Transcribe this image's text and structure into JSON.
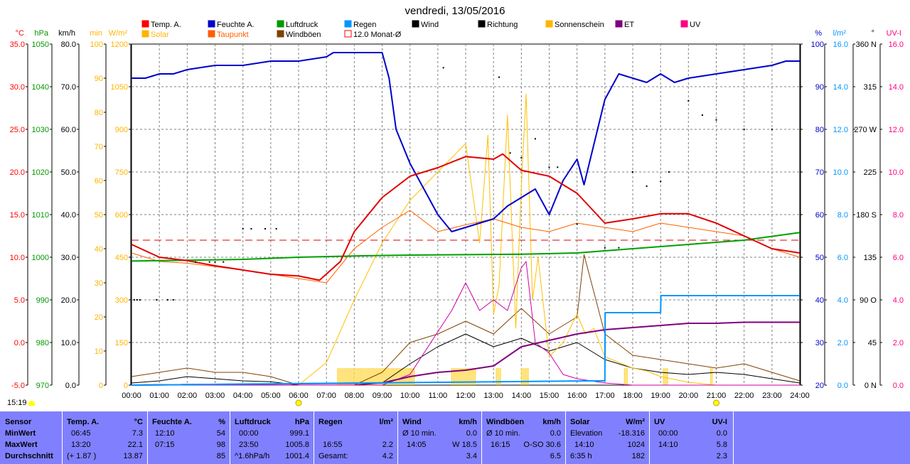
{
  "chart_data": {
    "type": "line",
    "title": "vendredi, 13/05/2016",
    "x_ticks": [
      "00:00",
      "01:00",
      "02:00",
      "03:00",
      "04:00",
      "05:00",
      "06:00",
      "07:00",
      "08:00",
      "09:00",
      "10:00",
      "11:00",
      "12:00",
      "13:00",
      "14:00",
      "15:00",
      "16:00",
      "17:00",
      "18:00",
      "19:00",
      "20:00",
      "21:00",
      "22:00",
      "23:00",
      "24:00"
    ],
    "left_axes": [
      {
        "unit": "°C",
        "color": "#ff0000",
        "ticks": [
          "35.0",
          "30.0",
          "25.0",
          "20.0",
          "15.0",
          "10.0",
          "5.0",
          "0.0",
          "-5.0"
        ]
      },
      {
        "unit": "hPa",
        "color": "#009900",
        "ticks": [
          "1050",
          "1040",
          "1030",
          "1020",
          "1010",
          "1000",
          "990",
          "980",
          "970"
        ]
      },
      {
        "unit": "km/h",
        "color": "#000000",
        "ticks": [
          "80.0",
          "70.0",
          "60.0",
          "50.0",
          "40.0",
          "30.0",
          "20.0",
          "10.0",
          "0.0"
        ]
      },
      {
        "unit": "min",
        "color": "#ffb400",
        "ticks": [
          "100",
          "90",
          "80",
          "70",
          "60",
          "50",
          "40",
          "30",
          "20",
          "10",
          "0"
        ]
      },
      {
        "unit": "W/m²",
        "color": "#ffb400",
        "ticks": [
          "1200",
          "1050",
          "900",
          "750",
          "600",
          "450",
          "300",
          "150",
          "0"
        ]
      }
    ],
    "right_axes": [
      {
        "unit": "%",
        "color": "#0000cc",
        "ticks": [
          "100",
          "90",
          "80",
          "70",
          "60",
          "50",
          "40",
          "30",
          "20"
        ]
      },
      {
        "unit": "l/m²",
        "color": "#0096ff",
        "ticks": [
          "16.0",
          "14.0",
          "12.0",
          "10.0",
          "8.0",
          "6.0",
          "4.0",
          "2.0",
          "0.0"
        ]
      },
      {
        "unit": "°",
        "color": "#000000",
        "ticks": [
          "360 N",
          "315",
          "270 W",
          "225",
          "180 S",
          "135",
          "90 O",
          "45",
          "0 N"
        ]
      },
      {
        "unit": "UV-I",
        "color": "#ff0080",
        "ticks": [
          "16.0",
          "14.0",
          "12.0",
          "10.0",
          "8.0",
          "6.0",
          "4.0",
          "2.0",
          "0.0"
        ]
      }
    ],
    "legend": [
      {
        "label": "Temp. A.",
        "color": "#ff0000"
      },
      {
        "label": "Feuchte A.",
        "color": "#0000cc"
      },
      {
        "label": "Luftdruck",
        "color": "#009900"
      },
      {
        "label": "Regen",
        "color": "#0096ff"
      },
      {
        "label": "Wind",
        "color": "#000000"
      },
      {
        "label": "Richtung",
        "color": "#000000"
      },
      {
        "label": "Sonnenschein",
        "color": "#ffb400"
      },
      {
        "label": "ET",
        "color": "#800080"
      },
      {
        "label": "UV",
        "color": "#ff0080"
      },
      {
        "label": "Solar",
        "color": "#ffb400"
      },
      {
        "label": "Taupunkt",
        "color": "#ff6000"
      },
      {
        "label": "Windböen",
        "color": "#804000"
      },
      {
        "label": "12.0 Monat-Ø",
        "color": "#ff0000"
      }
    ],
    "temperature_c": {
      "x": [
        0,
        1,
        2,
        3,
        4,
        5,
        6,
        6.75,
        7.5,
        8,
        9,
        10,
        11,
        12,
        13,
        13.33,
        14,
        15,
        16,
        17,
        18,
        19,
        20,
        21,
        22,
        23,
        24
      ],
      "y": [
        11.5,
        10,
        9.6,
        9,
        8.5,
        8,
        7.8,
        7.3,
        9.5,
        13,
        17,
        19.5,
        20.5,
        21.8,
        21.5,
        22.1,
        20.2,
        19.5,
        17.5,
        14,
        14.5,
        15.1,
        15.1,
        14,
        12.5,
        11,
        10.5
      ]
    },
    "humidity_pct": {
      "x": [
        0,
        0.5,
        1,
        1.5,
        2,
        3,
        4,
        5,
        6,
        7,
        7.25,
        8,
        9,
        9.25,
        9.5,
        10,
        10.5,
        11,
        11.5,
        12,
        12.5,
        13,
        13.5,
        14,
        14.5,
        15,
        15.5,
        16,
        16.25,
        17,
        17.5,
        18,
        18.5,
        19,
        19.5,
        20,
        21,
        22,
        23,
        23.5,
        24
      ],
      "y": [
        92,
        92,
        93,
        93,
        94,
        95,
        95,
        96,
        96,
        97,
        98,
        98,
        98,
        92,
        80,
        72,
        66,
        60,
        56,
        57,
        58,
        59,
        62,
        64,
        66,
        60,
        68,
        73,
        67,
        87,
        93,
        92,
        91,
        93,
        91,
        92,
        93,
        94,
        95,
        96,
        96
      ]
    },
    "dewpoint_c": {
      "x": [
        0,
        1,
        2,
        3,
        4,
        5,
        6,
        7,
        8,
        9,
        10,
        11,
        12,
        13,
        14,
        15,
        16,
        17,
        18,
        19,
        20,
        21,
        22,
        23,
        24
      ],
      "y": [
        10.5,
        9.5,
        9.3,
        8.9,
        8.5,
        8,
        7.5,
        7,
        11,
        13.5,
        15.5,
        13,
        13.8,
        14.5,
        13.5,
        13,
        14,
        13.5,
        13,
        14,
        13.5,
        13,
        12.5,
        11,
        10
      ]
    },
    "pressure_hpa": {
      "x": [
        0,
        2,
        4,
        6,
        8,
        10,
        12,
        14,
        16,
        18,
        20,
        22,
        24
      ],
      "y": [
        999.1,
        999.3,
        999.5,
        1000,
        1000.3,
        1000.5,
        1000.6,
        1000.7,
        1001,
        1002,
        1003,
        1004,
        1005.8
      ]
    },
    "monthly_avg_temp_c": 12.0,
    "rain_l_m2": {
      "x": [
        0,
        16.55,
        17,
        17.01,
        19,
        19.01,
        24
      ],
      "y": [
        0,
        0.2,
        0.2,
        3.4,
        3.4,
        4.2,
        4.2
      ]
    },
    "et": {
      "x": [
        0,
        9,
        10,
        11,
        12,
        13,
        14,
        15,
        16,
        17,
        18,
        19,
        20,
        21,
        22,
        23,
        24
      ],
      "y": [
        0,
        0.1,
        0.4,
        0.6,
        0.7,
        0.9,
        1.8,
        2.1,
        2.4,
        2.6,
        2.7,
        2.8,
        2.9,
        2.9,
        2.95,
        2.95,
        2.95
      ]
    },
    "uv_index": {
      "x": [
        0,
        9,
        10,
        11,
        11.5,
        12,
        12.5,
        13,
        13.5,
        14,
        14.17,
        14.5,
        15,
        15.5,
        16,
        17,
        18,
        19,
        24
      ],
      "y": [
        0,
        0,
        0.5,
        2.5,
        3.5,
        4.8,
        3.5,
        4,
        3.5,
        5.5,
        5.8,
        2,
        1.5,
        0.5,
        0.3,
        0.1,
        0,
        0,
        0
      ]
    },
    "solar_w_m2": {
      "x": [
        0,
        6,
        7,
        8,
        9,
        10,
        11,
        12,
        12.5,
        12.8,
        13,
        13.2,
        13.5,
        13.8,
        14,
        14.17,
        14.4,
        14.6,
        15,
        15.5,
        16,
        16.3,
        16.6,
        17,
        17.5,
        18,
        18.5,
        19,
        19.5,
        20,
        21,
        22,
        24
      ],
      "y": [
        0,
        0,
        80,
        300,
        500,
        650,
        750,
        850,
        500,
        880,
        250,
        350,
        950,
        200,
        700,
        1024,
        300,
        450,
        100,
        150,
        250,
        180,
        200,
        100,
        80,
        60,
        50,
        30,
        20,
        10,
        0,
        0,
        0
      ]
    },
    "sunshine_intervals_h": [
      [
        7.4,
        8.8
      ],
      [
        8.8,
        10.2
      ],
      [
        11.5,
        12.4
      ],
      [
        13.1,
        13.3
      ],
      [
        14.0,
        14.3
      ],
      [
        17.7,
        17.8
      ],
      [
        19.1,
        19.3
      ],
      [
        20.8,
        20.9
      ]
    ],
    "direction_deg_samples": {
      "x": [
        0.1,
        0.2,
        0.3,
        0.9,
        1.3,
        1.5,
        2.3,
        2.8,
        3,
        3.3,
        4,
        4.3,
        4.8,
        5.2,
        11.2,
        13.2,
        13.6,
        14,
        14.5,
        15,
        15.3,
        16,
        17,
        17.5,
        18,
        18.5,
        19,
        19.3,
        20,
        20.5,
        21,
        22,
        23
      ],
      "y": [
        90,
        90,
        90,
        90,
        90,
        90,
        130,
        130,
        130,
        130,
        165,
        165,
        165,
        165,
        335,
        325,
        245,
        240,
        260,
        230,
        230,
        170,
        145,
        145,
        225,
        210,
        215,
        225,
        300,
        285,
        280,
        270,
        270
      ]
    },
    "wind_kmh": {
      "x": [
        0,
        1,
        2,
        3,
        4,
        5,
        6,
        7,
        8,
        9,
        10,
        11,
        12,
        13,
        14,
        15,
        16,
        17,
        18,
        19,
        20,
        21,
        22,
        23,
        24
      ],
      "y": [
        0.5,
        1,
        2,
        1.5,
        1,
        0.8,
        0,
        0,
        0,
        0.5,
        5,
        9,
        12,
        9,
        11,
        8,
        10,
        6,
        4,
        3,
        2.5,
        3,
        2.5,
        1.5,
        0.5
      ]
    },
    "gusts_kmh": {
      "x": [
        0,
        1,
        2,
        3,
        4,
        5,
        6,
        7,
        8,
        9,
        10,
        11,
        12,
        13,
        14,
        15,
        16,
        16.25,
        17,
        18,
        19,
        20,
        21,
        22,
        23,
        24
      ],
      "y": [
        2,
        3,
        4,
        3,
        3,
        2,
        0,
        0,
        0,
        3,
        10,
        12,
        15,
        12,
        18,
        12,
        16,
        30.6,
        12,
        7,
        6,
        5,
        4,
        5,
        3,
        1
      ]
    }
  },
  "header": {
    "title": "vendredi, 13/05/2016",
    "legend_row1": [
      "Temp. A.",
      "Feuchte A.",
      "Luftdruck",
      "Regen",
      "Wind",
      "Richtung",
      "Sonnenschein",
      "ET",
      "UV"
    ],
    "legend_row2": [
      "Solar",
      "Taupunkt",
      "Windböen",
      "12.0 Monat-Ø"
    ]
  },
  "timestamp": "15:19",
  "stats": {
    "sensor": {
      "header": "Sensor",
      "rows": [
        "MinWert",
        "MaxWert",
        "Durchschnitt"
      ]
    },
    "temp": {
      "header": "Temp. A.",
      "unit": "°C",
      "min_time": "06:45",
      "min": "7.3",
      "max_time": "13:20",
      "max": "22.1",
      "avg_note": "(+ 1.87 )",
      "avg": "13.87"
    },
    "humidity": {
      "header": "Feuchte A.",
      "unit": "%",
      "min_time": "12:10",
      "min": "54",
      "max_time": "07:15",
      "max": "98",
      "avg": "85"
    },
    "pressure": {
      "header": "Luftdruck",
      "unit": "hPa",
      "min_time": "00:00",
      "min": "999.1",
      "max_time": "23:50",
      "max": "1005.8",
      "avg_note": "^1.6hPa/h",
      "avg": "1001.4"
    },
    "rain": {
      "header": "Regen",
      "unit": "l/m²",
      "max_time": "16:55",
      "max": "2.2",
      "total_label": "Gesamt:",
      "total": "4.2"
    },
    "wind": {
      "header": "Wind",
      "unit": "km/h",
      "min_label": "Ø 10 min.",
      "min": "0.0",
      "max_time": "14:05",
      "max": "W 18.5",
      "avg": "3.4"
    },
    "gusts": {
      "header": "Windböen",
      "unit": "km/h",
      "min_label": "Ø 10 min.",
      "min": "0.0",
      "max_time": "16:15",
      "max": "O-SO 30.6",
      "avg": "6.5"
    },
    "solar": {
      "header": "Solar",
      "unit": "W/m²",
      "min_label": "Elevation",
      "min": "-18.316",
      "max_time": "14:10",
      "max": "1024",
      "avg_note": "6:35 h",
      "avg": "182"
    },
    "uv": {
      "header": "UV",
      "unit": "UV-I",
      "min_time": "00:00",
      "min": "0.0",
      "max_time": "14:10",
      "max": "5.8",
      "avg": "2.3"
    }
  }
}
